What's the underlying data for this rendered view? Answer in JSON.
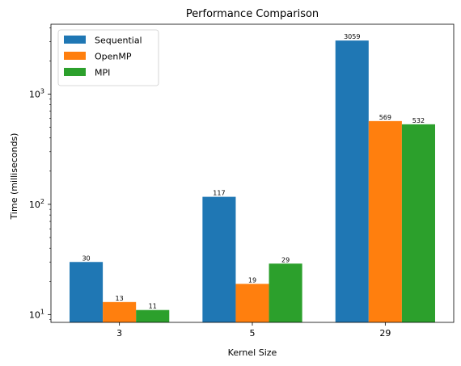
{
  "chart_data": {
    "type": "bar",
    "title": "Performance Comparison",
    "xlabel": "Kernel Size",
    "ylabel": "Time (milliseconds)",
    "yscale": "log",
    "ylim": [
      8.5,
      4300
    ],
    "categories": [
      "3",
      "5",
      "29"
    ],
    "series": [
      {
        "name": "Sequential",
        "color": "#1f77b4",
        "values": [
          30,
          117,
          3059
        ]
      },
      {
        "name": "OpenMP",
        "color": "#ff7f0e",
        "values": [
          13,
          19,
          569
        ]
      },
      {
        "name": "MPI",
        "color": "#2ca02c",
        "values": [
          11,
          29,
          532
        ]
      }
    ],
    "y_ticks": [
      {
        "value": 10,
        "base": "10",
        "exp": "1"
      },
      {
        "value": 100,
        "base": "10",
        "exp": "2"
      },
      {
        "value": 1000,
        "base": "10",
        "exp": "3"
      }
    ],
    "legend_position": "top-left",
    "grid": false
  }
}
